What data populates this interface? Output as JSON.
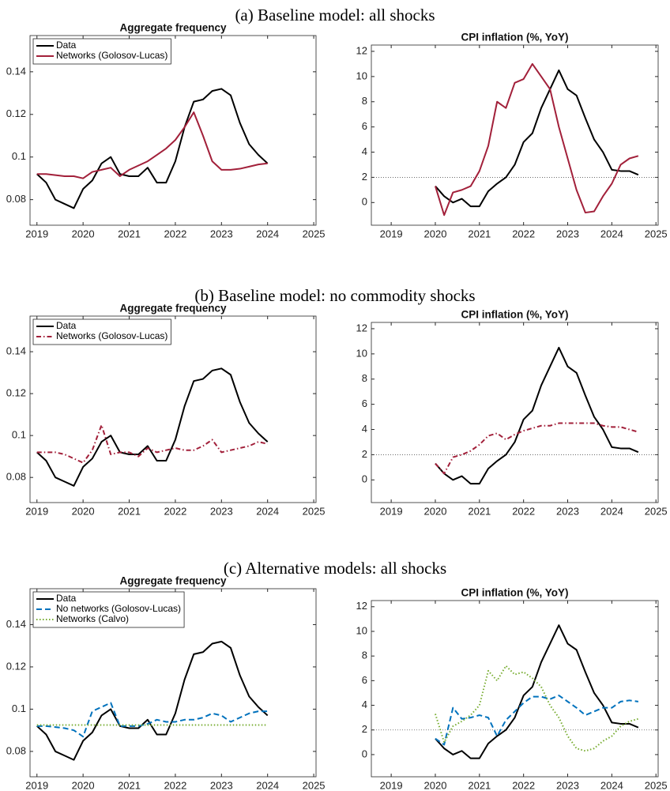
{
  "sections": [
    "(a)     Baseline model: all shocks",
    "(b)     Baseline model: no commodity shocks",
    "(c)     Alternative models: all shocks"
  ],
  "chart_data": [
    {
      "type": "line",
      "title": "Aggregate frequency",
      "x": [
        2019,
        2019.2,
        2019.4,
        2019.6,
        2019.8,
        2020,
        2020.2,
        2020.4,
        2020.6,
        2020.8,
        2021,
        2021.2,
        2021.4,
        2021.6,
        2021.8,
        2022,
        2022.2,
        2022.4,
        2022.6,
        2022.8,
        2023,
        2023.2,
        2023.4,
        2023.6,
        2023.8,
        2024
      ],
      "xlim": [
        2018.85,
        2025.05
      ],
      "xticks": [
        2019,
        2020,
        2021,
        2022,
        2023,
        2024,
        2025
      ],
      "ylim": [
        0.068,
        0.157
      ],
      "yticks": [
        0.08,
        0.1,
        0.12,
        0.14
      ],
      "legend": "upper left",
      "series": [
        {
          "name": "Data",
          "color": "#000000",
          "dash": "solid",
          "values": [
            0.092,
            0.088,
            0.08,
            0.078,
            0.076,
            0.085,
            0.089,
            0.097,
            0.1,
            0.092,
            0.091,
            0.091,
            0.095,
            0.088,
            0.088,
            0.098,
            0.114,
            0.126,
            0.127,
            0.131,
            0.132,
            0.129,
            0.116,
            0.106,
            0.101,
            0.097
          ]
        },
        {
          "name": "Networks (Golosov-Lucas)",
          "color": "#a2203a",
          "dash": "solid",
          "values": [
            0.092,
            0.092,
            0.0915,
            0.091,
            0.091,
            0.09,
            0.093,
            0.094,
            0.095,
            0.091,
            0.094,
            0.096,
            0.098,
            0.101,
            0.104,
            0.108,
            0.114,
            0.121,
            0.11,
            0.098,
            0.094,
            0.094,
            0.0945,
            0.0955,
            0.0965,
            0.097
          ]
        }
      ]
    },
    {
      "type": "line",
      "title": "CPI inflation (%, YoY)",
      "x": [
        2020,
        2020.2,
        2020.4,
        2020.6,
        2020.8,
        2021,
        2021.2,
        2021.4,
        2021.6,
        2021.8,
        2022,
        2022.2,
        2022.4,
        2022.6,
        2022.8,
        2023,
        2023.2,
        2023.4,
        2023.6,
        2023.8,
        2024,
        2024.2,
        2024.4,
        2024.6
      ],
      "xlim": [
        2018.55,
        2025.05
      ],
      "xticks": [
        2019,
        2020,
        2021,
        2022,
        2023,
        2024,
        2025
      ],
      "ylim": [
        -1.8,
        12.5
      ],
      "yticks": [
        0,
        2,
        4,
        6,
        8,
        10,
        12
      ],
      "hline": 2,
      "series": [
        {
          "color": "#000000",
          "dash": "solid",
          "values": [
            1.3,
            0.5,
            0.0,
            0.3,
            -0.3,
            -0.3,
            0.9,
            1.5,
            2.0,
            3.0,
            4.8,
            5.5,
            7.5,
            9.0,
            10.5,
            9.0,
            8.5,
            6.7,
            5.0,
            4.0,
            2.6,
            2.5,
            2.5,
            2.2
          ]
        },
        {
          "color": "#a2203a",
          "dash": "solid",
          "values": [
            1.3,
            -1.0,
            0.8,
            1.0,
            1.3,
            2.5,
            4.5,
            8.0,
            7.5,
            9.5,
            9.8,
            11.0,
            10.0,
            9.0,
            6.0,
            3.5,
            1.0,
            -0.8,
            -0.7,
            0.5,
            1.5,
            3.0,
            3.5,
            3.7
          ]
        }
      ]
    },
    {
      "type": "line",
      "title": "Aggregate frequency",
      "x": [
        2019,
        2019.2,
        2019.4,
        2019.6,
        2019.8,
        2020,
        2020.2,
        2020.4,
        2020.6,
        2020.8,
        2021,
        2021.2,
        2021.4,
        2021.6,
        2021.8,
        2022,
        2022.2,
        2022.4,
        2022.6,
        2022.8,
        2023,
        2023.2,
        2023.4,
        2023.6,
        2023.8,
        2024
      ],
      "xlim": [
        2018.85,
        2025.05
      ],
      "xticks": [
        2019,
        2020,
        2021,
        2022,
        2023,
        2024,
        2025
      ],
      "ylim": [
        0.068,
        0.157
      ],
      "yticks": [
        0.08,
        0.1,
        0.12,
        0.14
      ],
      "legend": "upper left",
      "series": [
        {
          "name": "Data",
          "color": "#000000",
          "dash": "solid",
          "values": [
            0.092,
            0.088,
            0.08,
            0.078,
            0.076,
            0.085,
            0.089,
            0.097,
            0.1,
            0.092,
            0.091,
            0.091,
            0.095,
            0.088,
            0.088,
            0.098,
            0.114,
            0.126,
            0.127,
            0.131,
            0.132,
            0.129,
            0.116,
            0.106,
            0.101,
            0.097
          ]
        },
        {
          "name": "Networks (Golosov-Lucas)",
          "color": "#a2203a",
          "dash": "dashdot",
          "values": [
            0.092,
            0.092,
            0.092,
            0.091,
            0.089,
            0.087,
            0.093,
            0.105,
            0.091,
            0.092,
            0.092,
            0.09,
            0.094,
            0.092,
            0.093,
            0.094,
            0.093,
            0.093,
            0.095,
            0.098,
            0.092,
            0.093,
            0.094,
            0.095,
            0.097,
            0.096
          ]
        }
      ]
    },
    {
      "type": "line",
      "title": "CPI inflation (%, YoY)",
      "x": [
        2020,
        2020.2,
        2020.4,
        2020.6,
        2020.8,
        2021,
        2021.2,
        2021.4,
        2021.6,
        2021.8,
        2022,
        2022.2,
        2022.4,
        2022.6,
        2022.8,
        2023,
        2023.2,
        2023.4,
        2023.6,
        2023.8,
        2024,
        2024.2,
        2024.4,
        2024.6
      ],
      "xlim": [
        2018.55,
        2025.05
      ],
      "xticks": [
        2019,
        2020,
        2021,
        2022,
        2023,
        2024,
        2025
      ],
      "ylim": [
        -1.8,
        12.5
      ],
      "yticks": [
        0,
        2,
        4,
        6,
        8,
        10,
        12
      ],
      "hline": 2,
      "series": [
        {
          "color": "#000000",
          "dash": "solid",
          "values": [
            1.3,
            0.5,
            0.0,
            0.3,
            -0.3,
            -0.3,
            0.9,
            1.5,
            2.0,
            3.0,
            4.8,
            5.5,
            7.5,
            9.0,
            10.5,
            9.0,
            8.5,
            6.7,
            5.0,
            4.0,
            2.6,
            2.5,
            2.5,
            2.2
          ]
        },
        {
          "color": "#a2203a",
          "dash": "dashdot",
          "values": [
            1.3,
            0.5,
            1.8,
            2.0,
            2.3,
            2.8,
            3.5,
            3.7,
            3.2,
            3.6,
            3.9,
            4.1,
            4.3,
            4.3,
            4.5,
            4.5,
            4.5,
            4.5,
            4.5,
            4.3,
            4.2,
            4.2,
            4.0,
            3.8
          ]
        }
      ]
    },
    {
      "type": "line",
      "title": "Aggregate frequency",
      "x": [
        2019,
        2019.2,
        2019.4,
        2019.6,
        2019.8,
        2020,
        2020.2,
        2020.4,
        2020.6,
        2020.8,
        2021,
        2021.2,
        2021.4,
        2021.6,
        2021.8,
        2022,
        2022.2,
        2022.4,
        2022.6,
        2022.8,
        2023,
        2023.2,
        2023.4,
        2023.6,
        2023.8,
        2024
      ],
      "xlim": [
        2018.85,
        2025.05
      ],
      "xticks": [
        2019,
        2020,
        2021,
        2022,
        2023,
        2024,
        2025
      ],
      "ylim": [
        0.068,
        0.157
      ],
      "yticks": [
        0.08,
        0.1,
        0.12,
        0.14
      ],
      "legend": "upper left",
      "series": [
        {
          "name": "Data",
          "color": "#000000",
          "dash": "solid",
          "values": [
            0.092,
            0.088,
            0.08,
            0.078,
            0.076,
            0.085,
            0.089,
            0.097,
            0.1,
            0.092,
            0.091,
            0.091,
            0.095,
            0.088,
            0.088,
            0.098,
            0.114,
            0.126,
            0.127,
            0.131,
            0.132,
            0.129,
            0.116,
            0.106,
            0.101,
            0.097
          ]
        },
        {
          "name": "No networks (Golosov-Lucas)",
          "color": "#0072bd",
          "dash": "dashed",
          "values": [
            0.092,
            0.092,
            0.0915,
            0.091,
            0.09,
            0.087,
            0.099,
            0.101,
            0.103,
            0.092,
            0.092,
            0.092,
            0.093,
            0.095,
            0.094,
            0.094,
            0.095,
            0.095,
            0.096,
            0.098,
            0.097,
            0.094,
            0.096,
            0.098,
            0.099,
            0.099
          ]
        },
        {
          "name": "Networks (Calvo)",
          "color": "#77ac30",
          "dash": "dotted",
          "values": [
            0.0925,
            0.0925,
            0.0925,
            0.0925,
            0.0925,
            0.0925,
            0.0925,
            0.0925,
            0.0925,
            0.0925,
            0.0925,
            0.0925,
            0.0925,
            0.0925,
            0.0925,
            0.0925,
            0.0925,
            0.0925,
            0.0925,
            0.0925,
            0.0925,
            0.0925,
            0.0925,
            0.0925,
            0.0925,
            0.0925
          ]
        }
      ]
    },
    {
      "type": "line",
      "title": "CPI inflation (%, YoY)",
      "x": [
        2020,
        2020.2,
        2020.4,
        2020.6,
        2020.8,
        2021,
        2021.2,
        2021.4,
        2021.6,
        2021.8,
        2022,
        2022.2,
        2022.4,
        2022.6,
        2022.8,
        2023,
        2023.2,
        2023.4,
        2023.6,
        2023.8,
        2024,
        2024.2,
        2024.4,
        2024.6
      ],
      "xlim": [
        2018.55,
        2025.05
      ],
      "xticks": [
        2019,
        2020,
        2021,
        2022,
        2023,
        2024,
        2025
      ],
      "ylim": [
        -1.8,
        12.5
      ],
      "yticks": [
        0,
        2,
        4,
        6,
        8,
        10,
        12
      ],
      "hline": 2,
      "series": [
        {
          "color": "#000000",
          "dash": "solid",
          "values": [
            1.3,
            0.5,
            0.0,
            0.3,
            -0.3,
            -0.3,
            0.9,
            1.5,
            2.0,
            3.0,
            4.8,
            5.5,
            7.5,
            9.0,
            10.5,
            9.0,
            8.5,
            6.7,
            5.0,
            4.0,
            2.6,
            2.5,
            2.5,
            2.2
          ]
        },
        {
          "color": "#0072bd",
          "dash": "dashed",
          "values": [
            1.3,
            0.8,
            3.8,
            2.9,
            3.0,
            3.2,
            3.0,
            1.5,
            2.8,
            3.5,
            4.2,
            4.7,
            4.7,
            4.5,
            4.8,
            4.3,
            3.8,
            3.2,
            3.5,
            3.8,
            3.8,
            4.3,
            4.4,
            4.3
          ]
        },
        {
          "color": "#77ac30",
          "dash": "dotted",
          "values": [
            3.3,
            1.0,
            2.3,
            2.7,
            3.2,
            4.0,
            6.8,
            6.0,
            7.2,
            6.5,
            6.7,
            6.2,
            5.5,
            4.0,
            3.0,
            1.5,
            0.5,
            0.3,
            0.5,
            1.1,
            1.5,
            2.3,
            2.7,
            2.9
          ]
        }
      ]
    }
  ]
}
